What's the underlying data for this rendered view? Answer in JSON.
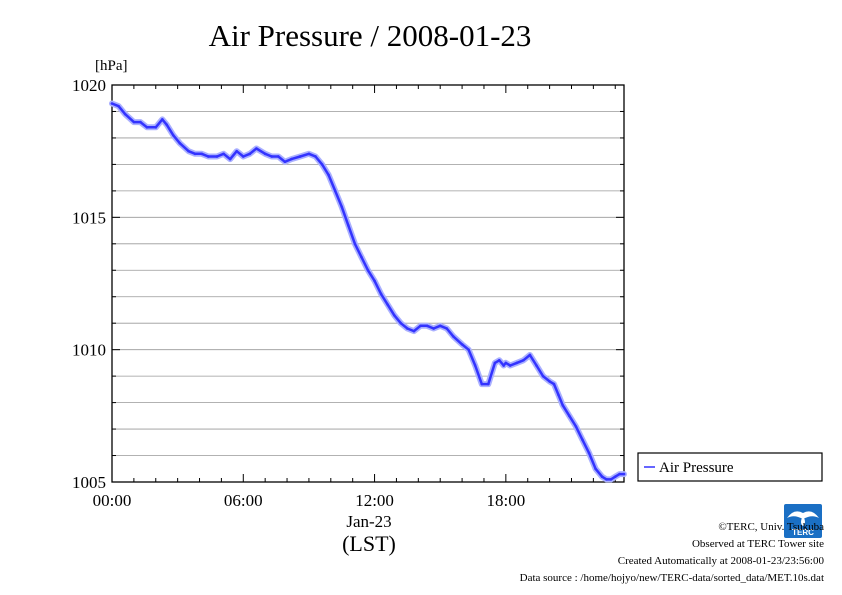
{
  "chart_data": {
    "type": "line",
    "title": "Air Pressure / 2008-01-23",
    "ylabel": "[hPa]",
    "xlabel_date": "Jan-23",
    "xlabel_tz": "(LST)",
    "xlim_hours": [
      0,
      23.4
    ],
    "ylim": [
      1005,
      1020
    ],
    "x_ticks": [
      {
        "hour": 0,
        "label": "00:00"
      },
      {
        "hour": 6,
        "label": "06:00"
      },
      {
        "hour": 12,
        "label": "12:00"
      },
      {
        "hour": 18,
        "label": "18:00"
      }
    ],
    "y_ticks": [
      {
        "value": 1020,
        "label": "1020"
      },
      {
        "value": 1015,
        "label": "1015"
      },
      {
        "value": 1010,
        "label": "1010"
      },
      {
        "value": 1005,
        "label": "1005"
      }
    ],
    "y_gridlines": [
      1005,
      1006,
      1007,
      1008,
      1009,
      1010,
      1011,
      1012,
      1013,
      1014,
      1015,
      1016,
      1017,
      1018,
      1019,
      1020
    ],
    "grid": true,
    "legend_position": "right-outside-bottom",
    "series": [
      {
        "name": "Air Pressure",
        "color": "#3333ff",
        "x": [
          0.0,
          0.3,
          0.6,
          1.0,
          1.3,
          1.6,
          2.0,
          2.3,
          2.5,
          2.8,
          3.1,
          3.5,
          3.8,
          4.1,
          4.4,
          4.8,
          5.1,
          5.4,
          5.7,
          6.0,
          6.3,
          6.6,
          7.0,
          7.3,
          7.6,
          7.9,
          8.2,
          8.6,
          9.0,
          9.3,
          9.6,
          9.9,
          10.2,
          10.5,
          10.8,
          11.1,
          11.4,
          11.7,
          12.0,
          12.3,
          12.6,
          12.9,
          13.2,
          13.5,
          13.8,
          14.1,
          14.4,
          14.7,
          15.0,
          15.3,
          15.6,
          16.0,
          16.3,
          16.6,
          16.9,
          17.2,
          17.5,
          17.7,
          17.9,
          18.0,
          18.2,
          18.5,
          18.8,
          19.1,
          19.4,
          19.7,
          20.0,
          20.2,
          20.4,
          20.6,
          20.9,
          21.2,
          21.5,
          21.8,
          22.1,
          22.4,
          22.6,
          22.8,
          23.0,
          23.2,
          23.4
        ],
        "values": [
          1019.3,
          1019.2,
          1018.9,
          1018.6,
          1018.6,
          1018.4,
          1018.4,
          1018.7,
          1018.5,
          1018.1,
          1017.8,
          1017.5,
          1017.4,
          1017.4,
          1017.3,
          1017.3,
          1017.4,
          1017.2,
          1017.5,
          1017.3,
          1017.4,
          1017.6,
          1017.4,
          1017.3,
          1017.3,
          1017.1,
          1017.2,
          1017.3,
          1017.4,
          1017.3,
          1017.0,
          1016.6,
          1016.0,
          1015.4,
          1014.7,
          1014.0,
          1013.5,
          1013.0,
          1012.6,
          1012.1,
          1011.7,
          1011.3,
          1011.0,
          1010.8,
          1010.7,
          1010.9,
          1010.9,
          1010.8,
          1010.9,
          1010.8,
          1010.5,
          1010.2,
          1010.0,
          1009.4,
          1008.7,
          1008.7,
          1009.5,
          1009.6,
          1009.4,
          1009.5,
          1009.4,
          1009.5,
          1009.6,
          1009.8,
          1009.4,
          1009.0,
          1008.8,
          1008.7,
          1008.3,
          1007.9,
          1007.5,
          1007.1,
          1006.6,
          1006.1,
          1005.5,
          1005.2,
          1005.1,
          1005.1,
          1005.2,
          1005.3,
          1005.3
        ]
      }
    ]
  },
  "footer": {
    "copyright": "©TERC, Univ. Tsukuba",
    "observed": "Observed at TERC Tower site",
    "created": "Created Automatically at 2008-01-23/23:56:00",
    "source": "Data source : /home/hojyo/new/TERC-data/sorted_data/MET.10s.dat"
  },
  "logo": {
    "text": "TERC",
    "color": "#1a6fc4"
  }
}
